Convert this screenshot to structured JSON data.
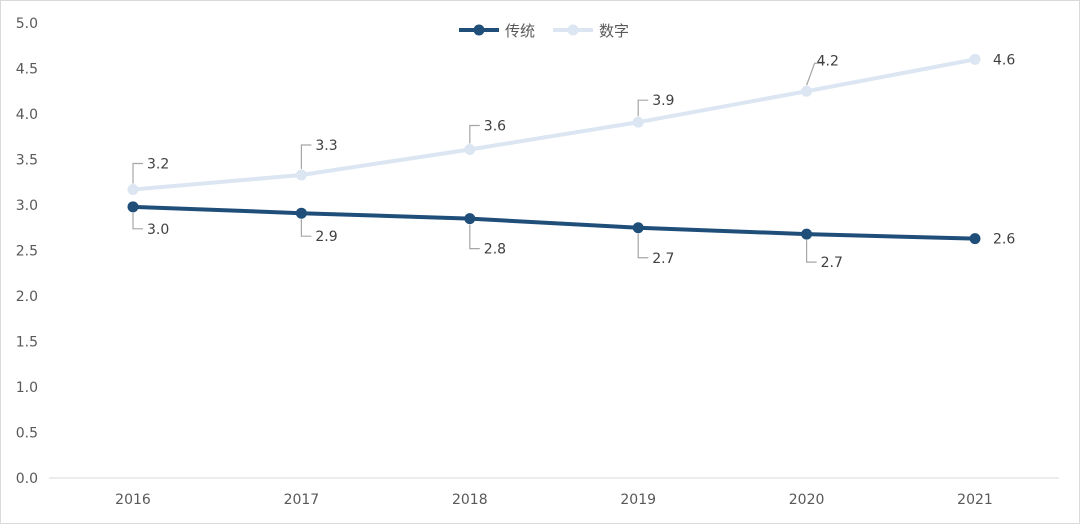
{
  "chart_data": {
    "type": "line",
    "categories": [
      "2016",
      "2017",
      "2018",
      "2019",
      "2020",
      "2021"
    ],
    "series": [
      {
        "name": "传统",
        "values": [
          2.98,
          2.91,
          2.85,
          2.75,
          2.68,
          2.63
        ],
        "labels": [
          "3.0",
          "2.9",
          "2.8",
          "2.7",
          "2.7",
          "2.6"
        ],
        "color": "#1f4e79"
      },
      {
        "name": "数字",
        "values": [
          3.17,
          3.33,
          3.61,
          3.91,
          4.25,
          4.6
        ],
        "labels": [
          "3.2",
          "3.3",
          "3.6",
          "3.9",
          "4.2",
          "4.6"
        ],
        "color": "#dce6f2"
      }
    ],
    "yticks": [
      "0.0",
      "0.5",
      "1.0",
      "1.5",
      "2.0",
      "2.5",
      "3.0",
      "3.5",
      "4.0",
      "4.5",
      "5.0"
    ],
    "ylim": [
      0,
      5
    ],
    "legend_position": "top-center",
    "grid": false
  }
}
